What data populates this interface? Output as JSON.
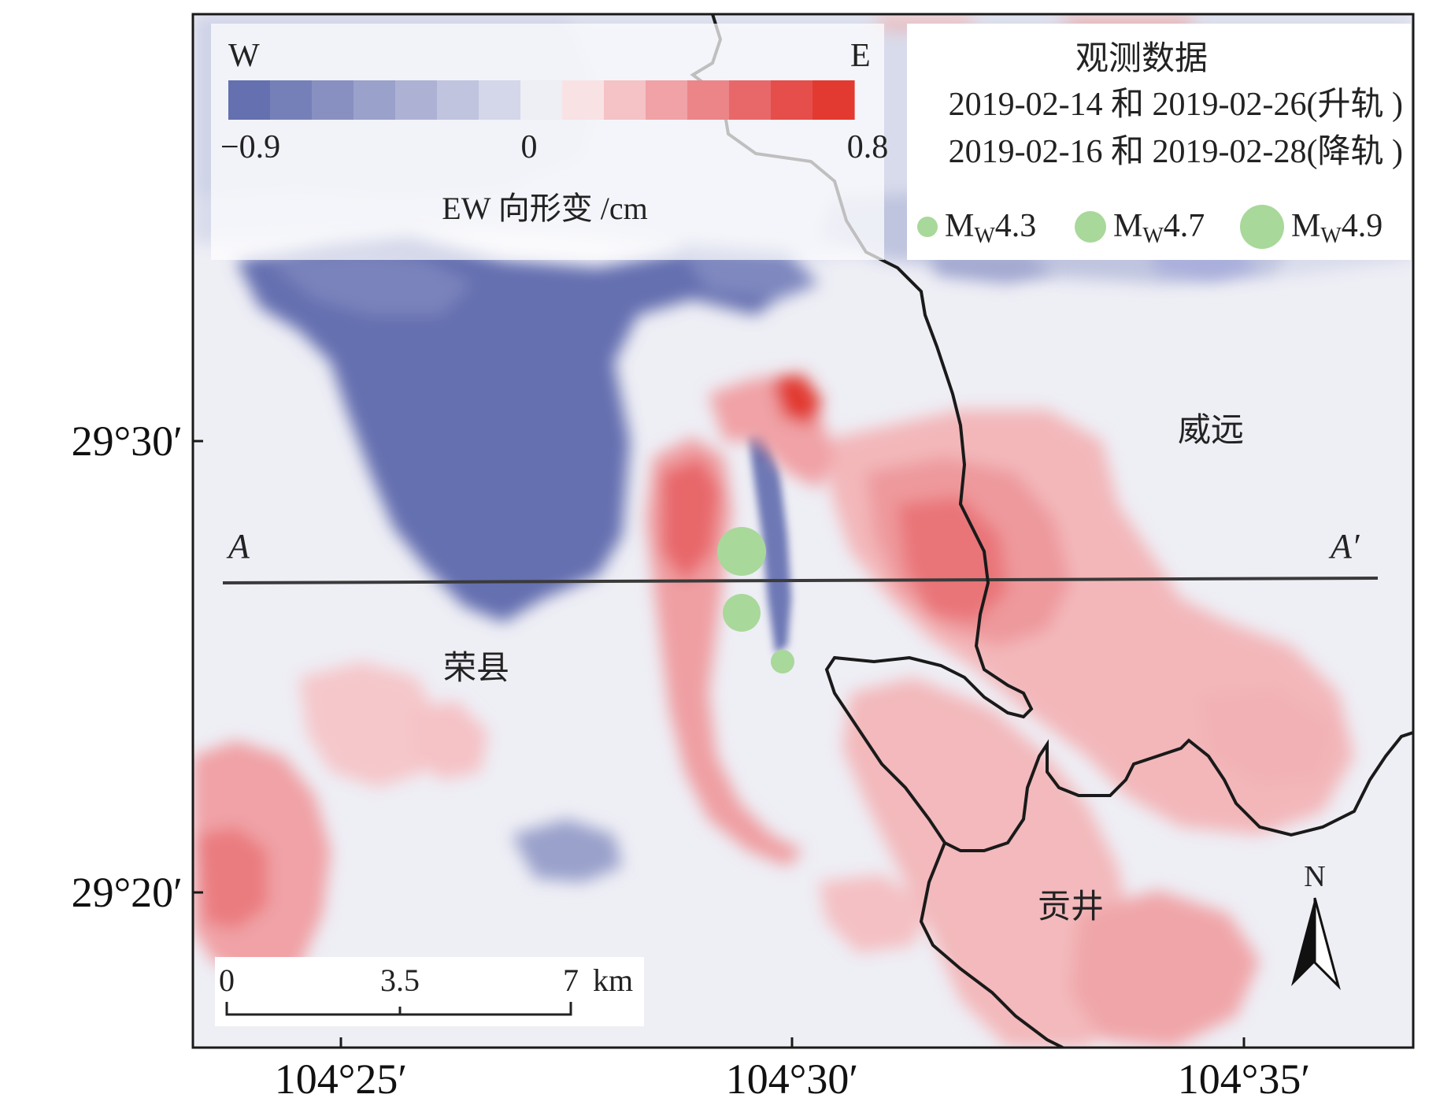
{
  "colorbar": {
    "west_label": "W",
    "east_label": "E",
    "min_label": "−0.9",
    "zero_label": "0",
    "max_label": "0.8",
    "title": "EW 向形变 /cm",
    "colors": [
      "#6570b0",
      "#7680b8",
      "#8890c2",
      "#9aa1cb",
      "#adb2d5",
      "#c0c4df",
      "#d4d6e9",
      "#eeeef5",
      "#f9e2e4",
      "#f5c2c6",
      "#f0a2a6",
      "#ec8588",
      "#e8686a",
      "#e54e4b",
      "#e23a30"
    ]
  },
  "legend": {
    "title": "观测数据",
    "ascending": "2019-02-14 和 2019-02-26(升轨 )",
    "descending": "2019-02-16 和 2019-02-28(降轨 )",
    "quakes": [
      {
        "prefix": "M",
        "sub": "W",
        "mag": "4.3"
      },
      {
        "prefix": "M",
        "sub": "W",
        "mag": "4.7"
      },
      {
        "prefix": "M",
        "sub": "W",
        "mag": "4.9"
      }
    ],
    "quake_color": "#a8d89a"
  },
  "places": {
    "rongxian": "荣县",
    "weiyuan": "威远",
    "gongjing": "贡井"
  },
  "profile": {
    "start": "A",
    "end": "A′"
  },
  "axes": {
    "y_ticks": [
      "29°30′",
      "29°20′"
    ],
    "x_ticks": [
      "104°25′",
      "104°30′",
      "104°35′"
    ]
  },
  "scalebar": {
    "labels": [
      "0",
      "3.5",
      "7"
    ],
    "unit": "km"
  },
  "north": "N",
  "colors": {
    "background": "#eeeef5",
    "subsidence_blue": "#6570b0",
    "uplift_red": "#e23a30",
    "boundary": "#1a1a1a"
  }
}
